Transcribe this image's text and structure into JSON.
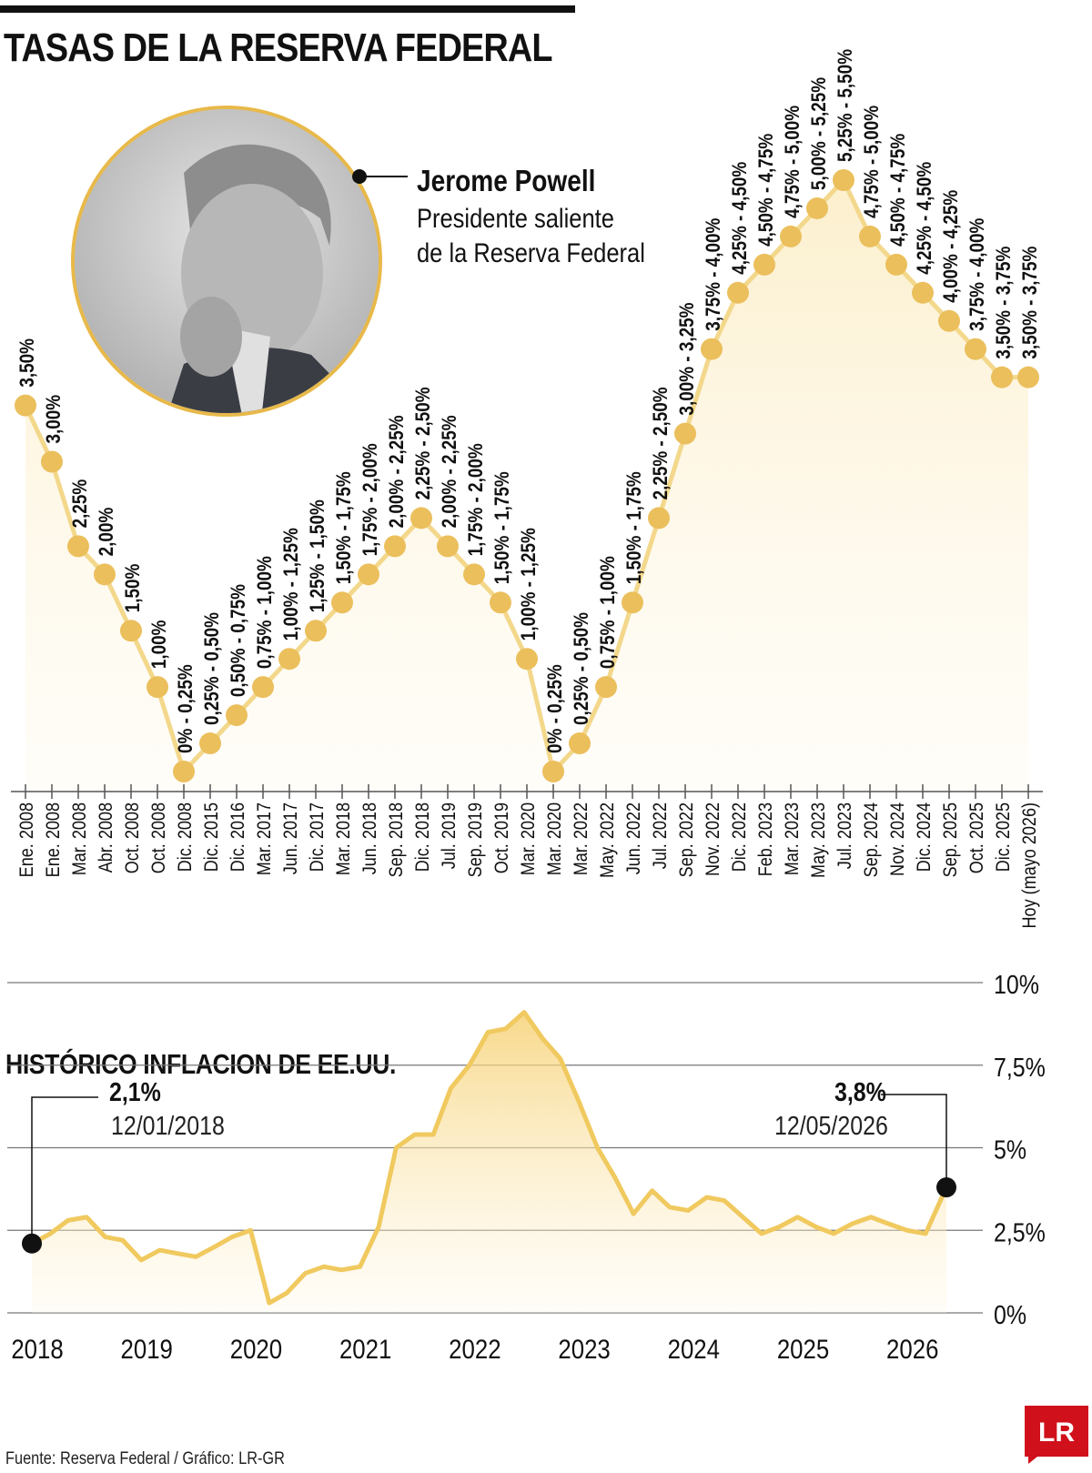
{
  "header": {
    "title": "TASAS DE LA RESERVA FEDERAL"
  },
  "profile": {
    "name": "Jerome Powell",
    "role_line1": "Presidente saliente",
    "role_line2": "de la Reserva Federal"
  },
  "colors": {
    "accent": "#ebbf5c",
    "line": "#f3d88c",
    "area_top": "#f9e2a4",
    "area_bottom": "#fff8e6",
    "text": "#111111",
    "logo_red": "#d0111b"
  },
  "chart_data": [
    {
      "type": "line",
      "title": "TASAS DE LA RESERVA FEDERAL",
      "x": [
        "Ene. 2008",
        "Ene. 2008",
        "Mar. 2008",
        "Abr. 2008",
        "Oct. 2008",
        "Oct. 2008",
        "Dic. 2008",
        "Dic. 2015",
        "Dic. 2016",
        "Mar. 2017",
        "Jun. 2017",
        "Dic. 2017",
        "Mar. 2018",
        "Jun. 2018",
        "Sep. 2018",
        "Dic. 2018",
        "Jul. 2019",
        "Sep. 2019",
        "Oct. 2019",
        "Mar. 2020",
        "Mar. 2020",
        "Mar. 2022",
        "May. 2022",
        "Jun. 2022",
        "Jul. 2022",
        "Sep. 2022",
        "Nov. 2022",
        "Dic. 2022",
        "Feb. 2023",
        "Mar. 2023",
        "May. 2023",
        "Jul. 2023",
        "Sep. 2024",
        "Nov. 2024",
        "Dic. 2024",
        "Sep. 2025",
        "Oct. 2025",
        "Dic. 2025",
        "Hoy (mayo 2026)"
      ],
      "labels": [
        "3,50%",
        "3,00%",
        "2,25%",
        "2,00%",
        "1,50%",
        "1,00%",
        "0% - 0,25%",
        "0,25% - 0,50%",
        "0,50% - 0,75%",
        "0,75% - 1,00%",
        "1,00% - 1,25%",
        "1,25% - 1,50%",
        "1,50% - 1,75%",
        "1,75% - 2,00%",
        "2,00% - 2,25%",
        "2,25% - 2,50%",
        "2,00% - 2,25%",
        "1,75% - 2,00%",
        "1,50% - 1,75%",
        "1,00% - 1,25%",
        "0% - 0,25%",
        "0,25% - 0,50%",
        "0,75% - 1,00%",
        "1,50% - 1,75%",
        "2,25% - 2,50%",
        "3,00% - 3,25%",
        "3,75% - 4,00%",
        "4,25% - 4,50%",
        "4,50% - 4,75%",
        "4,75% - 5,00%",
        "5,00% - 5,25%",
        "5,25% - 5,50%",
        "4,75% - 5,00%",
        "4,50% - 4,75%",
        "4,25% - 4,50%",
        "4,00% - 4,25%",
        "3,75% - 4,00%",
        "3,50% - 3,75%",
        "3,50% - 3,75%"
      ],
      "values": [
        3.5,
        3.0,
        2.25,
        2.0,
        1.5,
        1.0,
        0.25,
        0.5,
        0.75,
        1.0,
        1.25,
        1.5,
        1.75,
        2.0,
        2.25,
        2.5,
        2.25,
        2.0,
        1.75,
        1.25,
        0.25,
        0.5,
        1.0,
        1.75,
        2.5,
        3.25,
        4.0,
        4.5,
        4.75,
        5.0,
        5.25,
        5.5,
        5.0,
        4.75,
        4.5,
        4.25,
        4.0,
        3.75,
        3.75
      ]
    },
    {
      "type": "area",
      "title": "HISTÓRICO INFLACION DE EE.UU.",
      "x_ticks": [
        "2018",
        "2019",
        "2020",
        "2021",
        "2022",
        "2023",
        "2024",
        "2025",
        "2026"
      ],
      "y_ticks": [
        "0%",
        "2,5%",
        "5%",
        "7,5%",
        "10%"
      ],
      "ylim": [
        0,
        10
      ],
      "x": [
        2018.0,
        2018.17,
        2018.33,
        2018.5,
        2018.67,
        2018.83,
        2019.0,
        2019.17,
        2019.33,
        2019.5,
        2019.67,
        2019.83,
        2020.0,
        2020.17,
        2020.33,
        2020.5,
        2020.67,
        2020.83,
        2021.0,
        2021.17,
        2021.33,
        2021.5,
        2021.67,
        2021.83,
        2022.0,
        2022.17,
        2022.33,
        2022.5,
        2022.67,
        2022.83,
        2023.0,
        2023.17,
        2023.33,
        2023.5,
        2023.67,
        2023.83,
        2024.0,
        2024.17,
        2024.33,
        2024.5,
        2024.67,
        2024.83,
        2025.0,
        2025.17,
        2025.33,
        2025.5,
        2025.67,
        2025.83,
        2026.0,
        2026.17,
        2026.36
      ],
      "values": [
        2.1,
        2.4,
        2.8,
        2.9,
        2.3,
        2.2,
        1.6,
        1.9,
        1.8,
        1.7,
        2.0,
        2.3,
        2.5,
        0.3,
        0.6,
        1.2,
        1.4,
        1.3,
        1.4,
        2.6,
        5.0,
        5.4,
        5.4,
        6.8,
        7.5,
        8.5,
        8.6,
        9.1,
        8.3,
        7.7,
        6.4,
        5.0,
        4.1,
        3.0,
        3.7,
        3.2,
        3.1,
        3.5,
        3.4,
        2.9,
        2.4,
        2.6,
        2.9,
        2.6,
        2.4,
        2.7,
        2.9,
        2.7,
        2.5,
        2.4,
        3.8
      ],
      "annotations": [
        {
          "value": "2,1%",
          "date": "12/01/2018"
        },
        {
          "value": "3,8%",
          "date": "12/05/2026"
        }
      ]
    }
  ],
  "footer": {
    "source": "Fuente: Reserva Federal / Gráfico: LR-GR",
    "logo_text": "LR"
  }
}
